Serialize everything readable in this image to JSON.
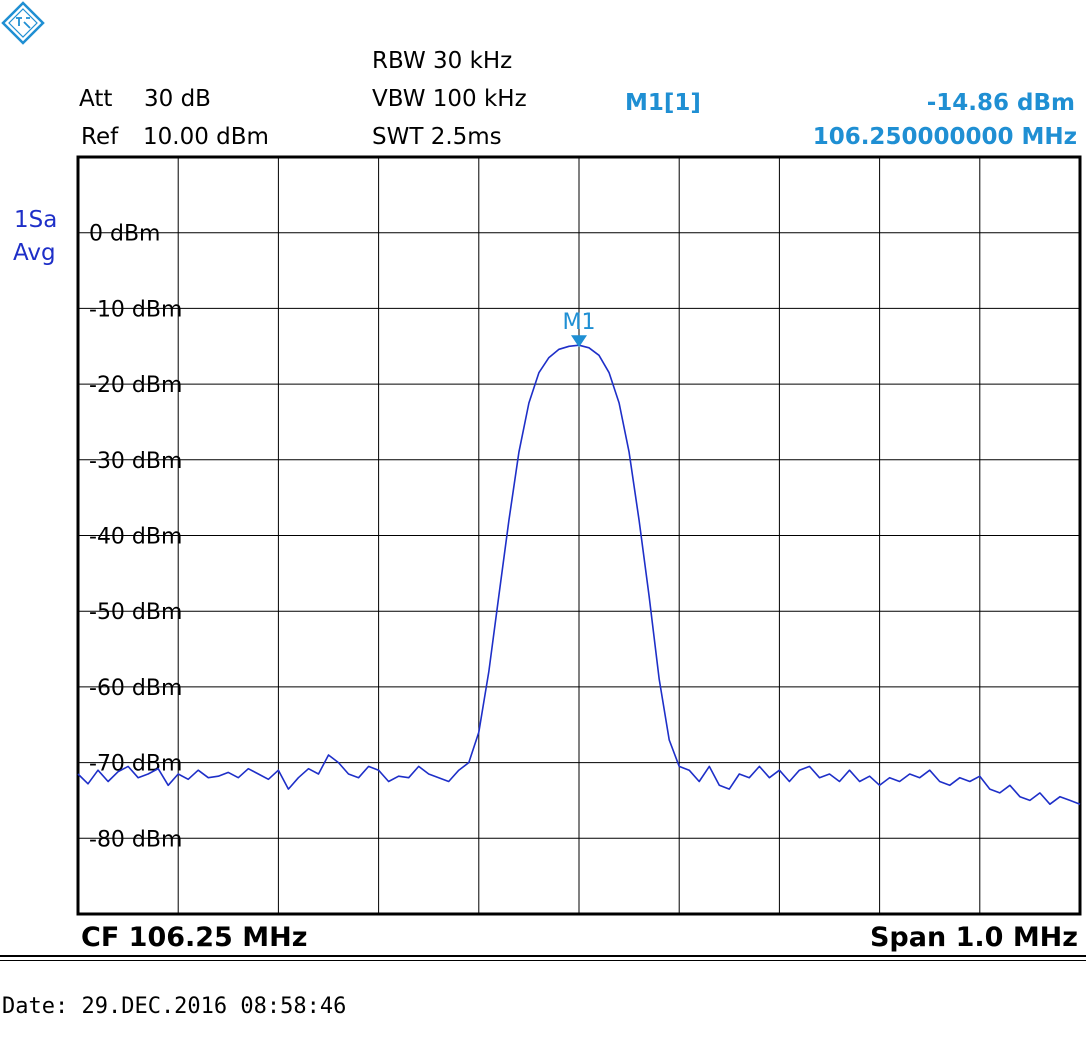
{
  "header": {
    "att_label": "Att",
    "att_value": "30 dB",
    "ref_label": "Ref",
    "ref_value": "10.00 dBm",
    "rbw": "RBW 30 kHz",
    "vbw": "VBW 100 kHz",
    "swt": "SWT 2.5ms",
    "marker_name": "M1[1]",
    "marker_level": "-14.86 dBm",
    "marker_freq": "106.250000000 MHz"
  },
  "trace_info": {
    "line1": "1Sa",
    "line2": "Avg"
  },
  "footer": {
    "cf": "CF 106.25 MHz",
    "span": "Span 1.0 MHz"
  },
  "date": "Date: 29.DEC.2016  08:58:46",
  "colors": {
    "trace": "#1e2fc8",
    "marker": "#1f8fd3",
    "text_blue": "#1f8fd3",
    "grid": "#000000"
  },
  "chart_data": {
    "type": "line",
    "title": "",
    "xlabel": "",
    "ylabel": "",
    "xlim": [
      105.75,
      106.75
    ],
    "ylim": [
      -90,
      10
    ],
    "grid": true,
    "y_ticks": [
      0,
      -10,
      -20,
      -30,
      -40,
      -50,
      -60,
      -70,
      -80
    ],
    "y_tick_labels": [
      "0 dBm",
      "-10 dBm",
      "-20 dBm",
      "-30 dBm",
      "-40 dBm",
      "-50 dBm",
      "-60 dBm",
      "-70 dBm",
      "-80 dBm"
    ],
    "marker": {
      "label": "M1",
      "x": 106.25,
      "y": -14.86
    },
    "series": [
      {
        "x": [
          105.75,
          105.76,
          105.77,
          105.78,
          105.79,
          105.8,
          105.81,
          105.82,
          105.83,
          105.84,
          105.85,
          105.86,
          105.87,
          105.88,
          105.89,
          105.9,
          105.91,
          105.92,
          105.93,
          105.94,
          105.95,
          105.96,
          105.97,
          105.98,
          105.99,
          106.0,
          106.01,
          106.02,
          106.03,
          106.04,
          106.05,
          106.06,
          106.07,
          106.08,
          106.09,
          106.1,
          106.11,
          106.12,
          106.13,
          106.14,
          106.15,
          106.16,
          106.17,
          106.18,
          106.19,
          106.2,
          106.21,
          106.22,
          106.23,
          106.24,
          106.25,
          106.26,
          106.27,
          106.28,
          106.29,
          106.3,
          106.31,
          106.32,
          106.33,
          106.34,
          106.35,
          106.36,
          106.37,
          106.38,
          106.39,
          106.4,
          106.41,
          106.42,
          106.43,
          106.44,
          106.45,
          106.46,
          106.47,
          106.48,
          106.49,
          106.5,
          106.51,
          106.52,
          106.53,
          106.54,
          106.55,
          106.56,
          106.57,
          106.58,
          106.59,
          106.6,
          106.61,
          106.62,
          106.63,
          106.64,
          106.65,
          106.66,
          106.67,
          106.68,
          106.69,
          106.7,
          106.71,
          106.72,
          106.73,
          106.74,
          106.75
        ],
        "y": [
          -71.5,
          -72.8,
          -71.0,
          -72.5,
          -71.2,
          -70.5,
          -72.0,
          -71.5,
          -70.8,
          -73.0,
          -71.5,
          -72.2,
          -71.0,
          -72.0,
          -71.8,
          -71.3,
          -72.0,
          -70.8,
          -71.5,
          -72.2,
          -71.0,
          -73.5,
          -72.0,
          -70.8,
          -71.5,
          -69.0,
          -70.0,
          -71.5,
          -72.0,
          -70.5,
          -71.0,
          -72.5,
          -71.8,
          -72.0,
          -70.5,
          -71.5,
          -72.0,
          -72.5,
          -71.0,
          -70.0,
          -66.0,
          -58.0,
          -48.0,
          -38.0,
          -29.0,
          -22.5,
          -18.5,
          -16.5,
          -15.4,
          -15.0,
          -14.86,
          -15.2,
          -16.2,
          -18.5,
          -22.5,
          -29.0,
          -38.0,
          -48.0,
          -59.0,
          -67.0,
          -70.5,
          -71.0,
          -72.5,
          -70.5,
          -73.0,
          -73.5,
          -71.5,
          -72.0,
          -70.5,
          -72.0,
          -71.0,
          -72.5,
          -71.0,
          -70.5,
          -72.0,
          -71.5,
          -72.5,
          -71.0,
          -72.5,
          -71.8,
          -73.0,
          -72.0,
          -72.5,
          -71.5,
          -72.0,
          -71.0,
          -72.5,
          -73.0,
          -72.0,
          -72.5,
          -71.8,
          -73.5,
          -74.0,
          -73.0,
          -74.5,
          -75.0,
          -74.0,
          -75.5,
          -74.5,
          -75.0,
          -75.5
        ]
      }
    ]
  }
}
